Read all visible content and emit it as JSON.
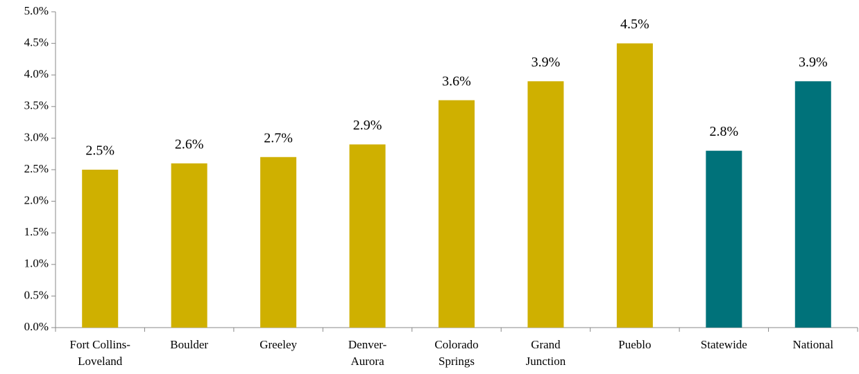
{
  "chart_data": {
    "type": "bar",
    "categories": [
      [
        "Fort Collins-",
        "Loveland"
      ],
      [
        "Boulder"
      ],
      [
        "Greeley"
      ],
      [
        "Denver-",
        "Aurora"
      ],
      [
        "Colorado",
        "Springs"
      ],
      [
        "Grand",
        "Junction"
      ],
      [
        "Pueblo"
      ],
      [
        "Statewide"
      ],
      [
        "National"
      ]
    ],
    "values": [
      2.5,
      2.6,
      2.7,
      2.9,
      3.6,
      3.9,
      4.5,
      2.8,
      3.9
    ],
    "value_labels": [
      "2.5%",
      "2.6%",
      "2.7%",
      "2.9%",
      "3.6%",
      "3.9%",
      "4.5%",
      "2.8%",
      "3.9%"
    ],
    "colors": [
      "#cfb000",
      "#cfb000",
      "#cfb000",
      "#cfb000",
      "#cfb000",
      "#cfb000",
      "#cfb000",
      "#00727a",
      "#00727a"
    ],
    "ylim": [
      0,
      5
    ],
    "yticks": [
      {
        "value": 0,
        "label": "0.0%"
      },
      {
        "value": 0.5,
        "label": "0.5%"
      },
      {
        "value": 1,
        "label": "1.0%"
      },
      {
        "value": 1.5,
        "label": "1.5%"
      },
      {
        "value": 2,
        "label": "2.0%"
      },
      {
        "value": 2.5,
        "label": "2.5%"
      },
      {
        "value": 3,
        "label": "3.0%"
      },
      {
        "value": 3.5,
        "label": "3.5%"
      },
      {
        "value": 4,
        "label": "4.0%"
      },
      {
        "value": 4.5,
        "label": "4.5%"
      },
      {
        "value": 5,
        "label": "5.0%"
      }
    ],
    "grid": false
  }
}
